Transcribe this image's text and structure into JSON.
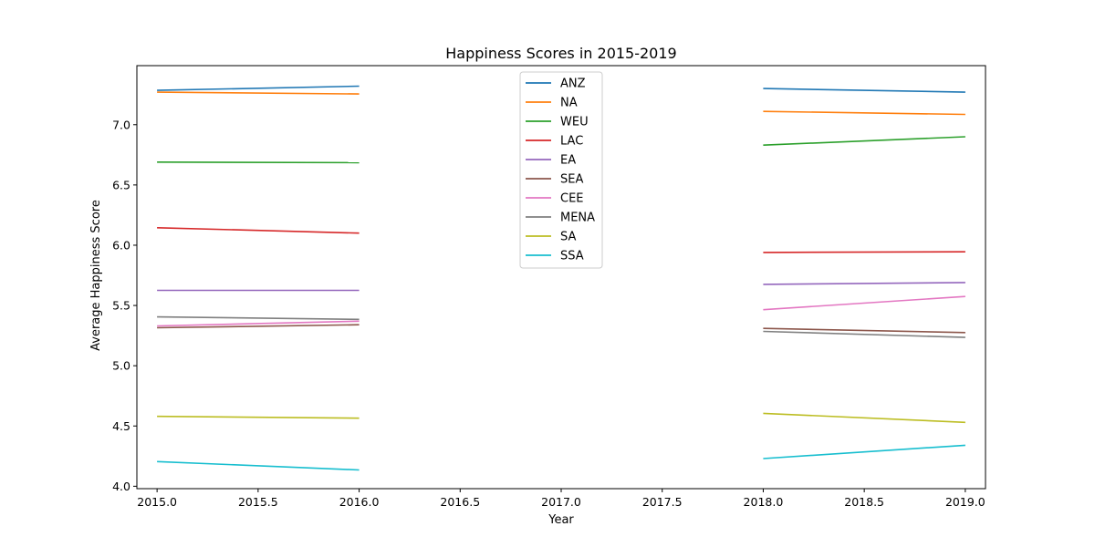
{
  "chart_data": {
    "type": "line",
    "title": "Happiness Scores in 2015-2019",
    "xlabel": "Year",
    "ylabel": "Average Happiness Score",
    "xlim": [
      2014.9,
      2019.1
    ],
    "ylim": [
      3.98,
      7.49
    ],
    "xticks": [
      "2015.0",
      "2015.5",
      "2016.0",
      "2016.5",
      "2017.0",
      "2017.5",
      "2018.0",
      "2018.5",
      "2019.0"
    ],
    "yticks": [
      "4.0",
      "4.5",
      "5.0",
      "5.5",
      "6.0",
      "6.5",
      "7.0"
    ],
    "grid": false,
    "legend_position": "top-center",
    "series": [
      {
        "name": "ANZ",
        "color": "#1f77b4",
        "segments": [
          [
            [
              2015,
              7.285
            ],
            [
              2016,
              7.32
            ]
          ],
          [
            [
              2018,
              7.3
            ],
            [
              2019,
              7.27
            ]
          ]
        ]
      },
      {
        "name": "NA",
        "color": "#ff7f0e",
        "segments": [
          [
            [
              2015,
              7.27
            ],
            [
              2016,
              7.255
            ]
          ],
          [
            [
              2018,
              7.11
            ],
            [
              2019,
              7.085
            ]
          ]
        ]
      },
      {
        "name": "WEU",
        "color": "#2ca02c",
        "segments": [
          [
            [
              2015,
              6.69
            ],
            [
              2016,
              6.685
            ]
          ],
          [
            [
              2018,
              6.83
            ],
            [
              2019,
              6.9
            ]
          ]
        ]
      },
      {
        "name": "LAC",
        "color": "#d62728",
        "segments": [
          [
            [
              2015,
              6.145
            ],
            [
              2016,
              6.1
            ]
          ],
          [
            [
              2018,
              5.94
            ],
            [
              2019,
              5.945
            ]
          ]
        ]
      },
      {
        "name": "EA",
        "color": "#9467bd",
        "segments": [
          [
            [
              2015,
              5.625
            ],
            [
              2016,
              5.625
            ]
          ],
          [
            [
              2018,
              5.675
            ],
            [
              2019,
              5.69
            ]
          ]
        ]
      },
      {
        "name": "SEA",
        "color": "#8c564b",
        "segments": [
          [
            [
              2015,
              5.315
            ],
            [
              2016,
              5.34
            ]
          ],
          [
            [
              2018,
              5.31
            ],
            [
              2019,
              5.275
            ]
          ]
        ]
      },
      {
        "name": "CEE",
        "color": "#e377c2",
        "segments": [
          [
            [
              2015,
              5.33
            ],
            [
              2016,
              5.37
            ]
          ],
          [
            [
              2018,
              5.465
            ],
            [
              2019,
              5.575
            ]
          ]
        ]
      },
      {
        "name": "MENA",
        "color": "#7f7f7f",
        "segments": [
          [
            [
              2015,
              5.405
            ],
            [
              2016,
              5.385
            ]
          ],
          [
            [
              2018,
              5.285
            ],
            [
              2019,
              5.235
            ]
          ]
        ]
      },
      {
        "name": "SA",
        "color": "#bcbd22",
        "segments": [
          [
            [
              2015,
              4.58
            ],
            [
              2016,
              4.565
            ]
          ],
          [
            [
              2018,
              4.605
            ],
            [
              2019,
              4.53
            ]
          ]
        ]
      },
      {
        "name": "SSA",
        "color": "#17becf",
        "segments": [
          [
            [
              2015,
              4.205
            ],
            [
              2016,
              4.135
            ]
          ],
          [
            [
              2018,
              4.23
            ],
            [
              2019,
              4.34
            ]
          ]
        ]
      }
    ]
  }
}
